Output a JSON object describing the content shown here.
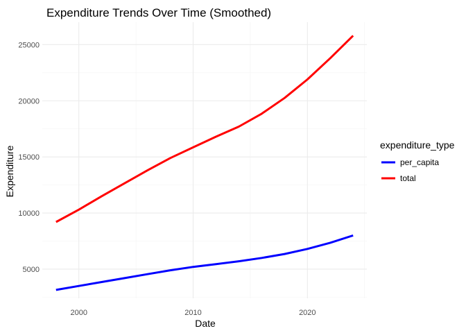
{
  "chart_data": {
    "type": "line",
    "title": "Expenditure Trends Over Time (Smoothed)",
    "xlabel": "Date",
    "ylabel": "Expenditure",
    "xlim": [
      1996.8,
      2025.2
    ],
    "ylim": [
      2400,
      27000
    ],
    "x_ticks": [
      2000,
      2010,
      2020
    ],
    "x_tick_labels": [
      "2000",
      "2010",
      "2020"
    ],
    "y_ticks": [
      5000,
      10000,
      15000,
      20000,
      25000
    ],
    "y_tick_labels": [
      "5000",
      "10000",
      "15000",
      "20000",
      "25000"
    ],
    "grid": true,
    "legend_title": "expenditure_type",
    "legend_position": "right",
    "series": [
      {
        "name": "per_capita",
        "color": "#0000ff",
        "x": [
          1998,
          2000,
          2002,
          2004,
          2006,
          2008,
          2010,
          2012,
          2014,
          2016,
          2018,
          2020,
          2022,
          2024
        ],
        "y": [
          3150,
          3500,
          3850,
          4200,
          4550,
          4900,
          5200,
          5450,
          5700,
          6000,
          6350,
          6800,
          7350,
          8000
        ]
      },
      {
        "name": "total",
        "color": "#ff0000",
        "x": [
          1998,
          2000,
          2002,
          2004,
          2006,
          2008,
          2010,
          2012,
          2014,
          2016,
          2018,
          2020,
          2022,
          2024
        ],
        "y": [
          9200,
          10300,
          11500,
          12650,
          13800,
          14900,
          15850,
          16800,
          17700,
          18850,
          20250,
          21900,
          23800,
          25800
        ]
      }
    ]
  }
}
